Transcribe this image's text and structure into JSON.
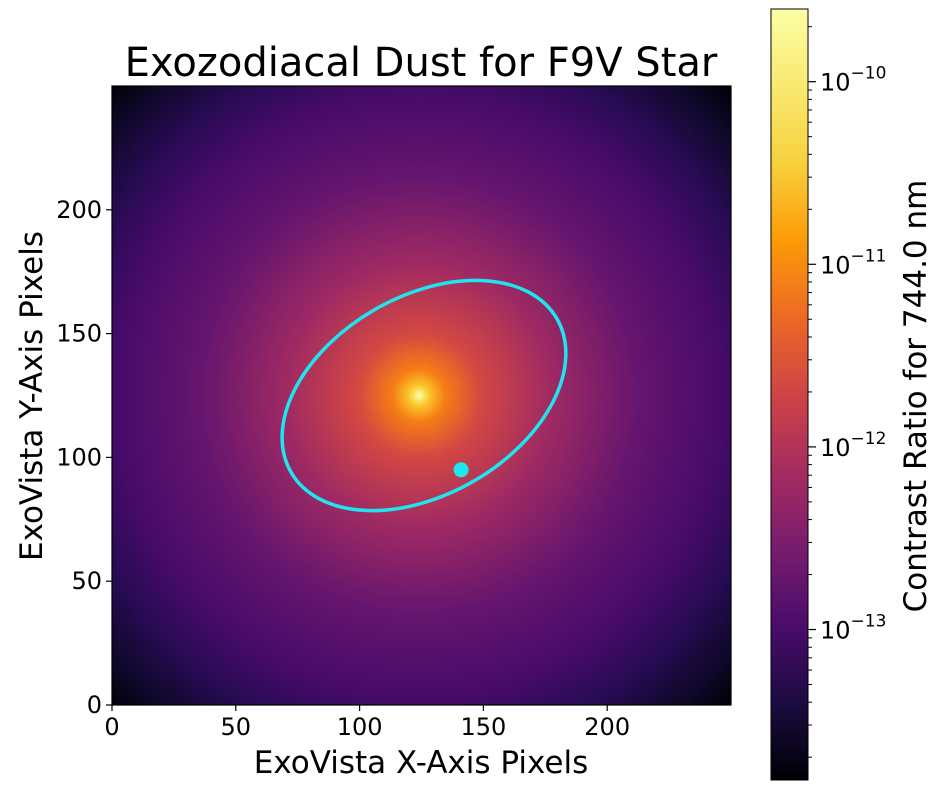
{
  "chart_data": {
    "type": "heatmap",
    "title": "Exozodiacal Dust for F9V Star",
    "xlabel": "ExoVista X-Axis Pixels",
    "ylabel": "ExoVista Y-Axis Pixels",
    "xlim": [
      0,
      250
    ],
    "ylim": [
      0,
      250
    ],
    "xticks": [
      0,
      50,
      100,
      150,
      200
    ],
    "yticks": [
      0,
      50,
      100,
      150,
      200
    ],
    "xtick_labels": [
      "0",
      "50",
      "100",
      "150",
      "200"
    ],
    "ytick_labels": [
      "0",
      "50",
      "100",
      "150",
      "200"
    ],
    "colormap": "inferno",
    "star_center": [
      124,
      125
    ],
    "colorbar": {
      "label": "Contrast Ratio for 744.0 nm",
      "scale": "log",
      "range": [
        1.5e-14,
        2.5e-10
      ],
      "ticks": [
        {
          "value": 1e-13,
          "base": "10",
          "exponent": "−13"
        },
        {
          "value": 1e-12,
          "base": "10",
          "exponent": "−12"
        },
        {
          "value": 1e-11,
          "base": "10",
          "exponent": "−11"
        },
        {
          "value": 1e-10,
          "base": "10",
          "exponent": "−10"
        }
      ]
    },
    "orbit": {
      "color": "#1ee6f0",
      "center": [
        126,
        125
      ],
      "semi_major": 62,
      "semi_minor": 40,
      "rotation_deg": 30
    },
    "planet": {
      "color": "#1ee6f0",
      "position": [
        141,
        95
      ]
    }
  }
}
